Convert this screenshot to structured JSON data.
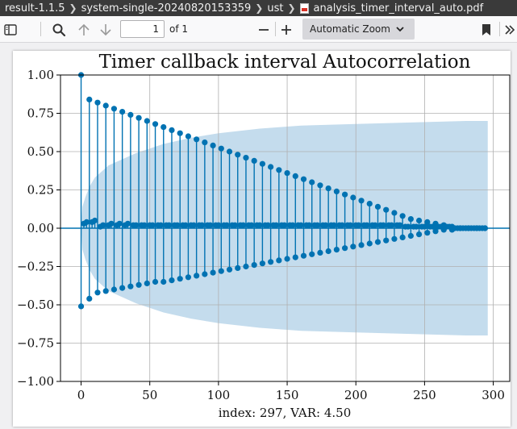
{
  "breadcrumb": {
    "items": [
      "result-1.1.5",
      "system-single-20240820153359",
      "ust",
      "analysis_timer_interval_auto.pdf"
    ]
  },
  "toolbar": {
    "page_number": "1",
    "page_of": "of 1",
    "zoom_label": "Automatic Zoom",
    "icons": [
      "sidebar-toggle-icon",
      "search-icon",
      "arrow-up-icon",
      "arrow-down-icon",
      "minus-icon",
      "plus-icon",
      "chevron-down-icon",
      "bookmark-icon",
      "double-chevron-right-icon"
    ]
  },
  "chart_data": {
    "type": "stem",
    "title": "Timer callback interval Autocorrelation",
    "xlabel": "index: 297, VAR: 4.50",
    "ylabel": "",
    "xlim": [
      -15,
      312
    ],
    "ylim": [
      -1.0,
      1.0
    ],
    "xticks": [
      "0",
      "50",
      "100",
      "150",
      "200",
      "250",
      "300"
    ],
    "yticks": [
      "−1.00",
      "−0.75",
      "−0.50",
      "−0.25",
      "0.00",
      "0.25",
      "0.50",
      "0.75",
      "1.00"
    ],
    "grid": true,
    "max_lag": 296,
    "period": 6,
    "series": [
      {
        "role": "positive-peaks",
        "x": [
          0,
          6,
          12,
          18,
          24,
          30,
          36,
          42,
          48,
          54,
          60,
          66,
          72,
          78,
          84,
          90,
          96,
          102,
          108,
          114,
          120,
          126,
          132,
          138,
          144,
          150,
          156,
          162,
          168,
          174,
          180,
          186,
          192,
          198,
          204,
          210,
          216,
          222,
          228,
          234,
          240,
          246,
          252,
          258,
          264,
          270,
          276,
          282,
          288,
          294
        ],
        "y": [
          1.0,
          0.84,
          0.82,
          0.8,
          0.78,
          0.76,
          0.74,
          0.72,
          0.7,
          0.68,
          0.66,
          0.64,
          0.62,
          0.6,
          0.58,
          0.56,
          0.54,
          0.52,
          0.5,
          0.48,
          0.46,
          0.44,
          0.42,
          0.4,
          0.38,
          0.36,
          0.34,
          0.32,
          0.3,
          0.28,
          0.26,
          0.24,
          0.22,
          0.2,
          0.18,
          0.16,
          0.14,
          0.12,
          0.1,
          0.08,
          0.06,
          0.05,
          0.04,
          0.03,
          0.02,
          0.01,
          0.0,
          0.0,
          0.0,
          0.0
        ]
      },
      {
        "role": "negative-peaks",
        "x": [
          0,
          6,
          12,
          18,
          24,
          30,
          36,
          42,
          48,
          54,
          60,
          66,
          72,
          78,
          84,
          90,
          96,
          102,
          108,
          114,
          120,
          126,
          132,
          138,
          144,
          150,
          156,
          162,
          168,
          174,
          180,
          186,
          192,
          198,
          204,
          210,
          216,
          222,
          228,
          234,
          240,
          246,
          252,
          258,
          264,
          270,
          276,
          282,
          288,
          294
        ],
        "y": [
          -0.51,
          -0.46,
          -0.42,
          -0.41,
          -0.4,
          -0.39,
          -0.38,
          -0.37,
          -0.36,
          -0.35,
          -0.35,
          -0.34,
          -0.33,
          -0.32,
          -0.31,
          -0.3,
          -0.29,
          -0.28,
          -0.27,
          -0.26,
          -0.25,
          -0.24,
          -0.23,
          -0.22,
          -0.21,
          -0.2,
          -0.19,
          -0.18,
          -0.17,
          -0.16,
          -0.15,
          -0.14,
          -0.13,
          -0.12,
          -0.11,
          -0.1,
          -0.09,
          -0.08,
          -0.07,
          -0.06,
          -0.05,
          -0.04,
          -0.03,
          -0.02,
          -0.01,
          -0.01,
          0.0,
          0.0,
          0.0,
          0.0
        ]
      },
      {
        "role": "near-zero",
        "x": [
          2,
          4,
          8,
          10,
          14,
          16,
          20,
          22,
          26,
          28,
          32,
          34,
          38,
          40,
          44,
          46,
          50,
          52,
          56,
          58,
          62,
          64,
          68,
          70,
          74,
          76,
          80,
          82,
          86,
          88,
          92,
          94,
          98,
          100,
          104,
          106,
          110,
          112,
          116,
          118,
          122,
          124,
          128,
          130,
          134,
          136,
          140,
          142,
          146,
          148,
          152,
          154,
          158,
          160,
          164,
          166,
          170,
          172,
          176,
          178,
          182,
          184,
          188,
          190,
          194,
          196,
          200,
          202,
          206,
          208,
          212,
          214,
          218,
          220,
          224,
          226,
          230,
          232,
          236,
          238,
          242,
          244,
          248,
          250,
          254,
          256,
          260,
          262,
          266,
          268,
          272,
          274,
          278,
          280,
          284,
          286,
          290,
          292
        ],
        "y": [
          0.03,
          0.04,
          0.04,
          0.05,
          0.01,
          0.02,
          0.02,
          0.03,
          0.02,
          0.03,
          0.02,
          0.03,
          0.02,
          0.02,
          0.02,
          0.02,
          0.02,
          0.02,
          0.02,
          0.02,
          0.02,
          0.02,
          0.02,
          0.02,
          0.02,
          0.02,
          0.02,
          0.02,
          0.02,
          0.02,
          0.02,
          0.02,
          0.02,
          0.02,
          0.02,
          0.02,
          0.02,
          0.02,
          0.02,
          0.02,
          0.02,
          0.02,
          0.02,
          0.02,
          0.02,
          0.02,
          0.02,
          0.02,
          0.02,
          0.02,
          0.02,
          0.02,
          0.02,
          0.02,
          0.02,
          0.02,
          0.02,
          0.02,
          0.02,
          0.02,
          0.02,
          0.02,
          0.02,
          0.02,
          0.02,
          0.02,
          0.02,
          0.02,
          0.02,
          0.02,
          0.02,
          0.02,
          0.02,
          0.02,
          0.02,
          0.02,
          0.02,
          0.02,
          0.01,
          0.01,
          0.01,
          0.01,
          0.01,
          0.01,
          0.01,
          0.01,
          0.01,
          0.01,
          0.01,
          0.01,
          0.0,
          0.0,
          0.0,
          0.0,
          0.0,
          0.0,
          0.0,
          0.0
        ]
      }
    ],
    "confidence_band": {
      "x": [
        0,
        1,
        3,
        6,
        10,
        20,
        40,
        60,
        80,
        100,
        130,
        160,
        200,
        240,
        280,
        296
      ],
      "upper": [
        0.0,
        0.14,
        0.2,
        0.27,
        0.33,
        0.41,
        0.49,
        0.55,
        0.59,
        0.62,
        0.65,
        0.67,
        0.68,
        0.69,
        0.7,
        0.7
      ]
    },
    "colors": {
      "stem": "#0072b2",
      "band": "#c4dced",
      "grid": "#b0b0b0",
      "zero_line": "#0072b2"
    }
  }
}
